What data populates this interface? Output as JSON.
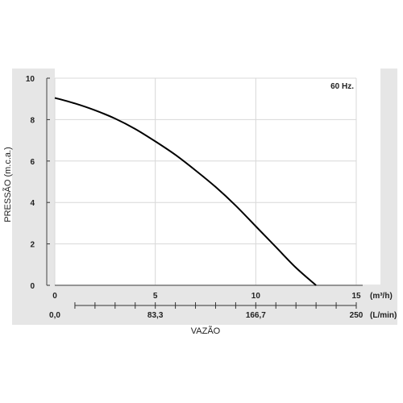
{
  "chart_data": {
    "type": "line",
    "annotation": "60 Hz.",
    "ylabel": "PRESSÃO (m.c.a.)",
    "xlabel": "VAZÃO",
    "ylim": [
      0,
      10
    ],
    "xlim": [
      0,
      15
    ],
    "y_ticks": [
      "0",
      "2",
      "4",
      "6",
      "8",
      "10"
    ],
    "x_ticks_m3h": [
      "0",
      "5",
      "10",
      "15"
    ],
    "x_unit_m3h": "(m³/h)",
    "x_ticks_lmin": [
      "0,0",
      "83,3",
      "166,7",
      "250"
    ],
    "x_unit_lmin": "(L/min)",
    "grid": true,
    "series": [
      {
        "color": "#000000",
        "x": [
          0,
          1,
          2,
          3,
          4,
          5,
          6,
          7,
          8,
          9,
          10,
          11,
          12,
          13.0
        ],
        "y": [
          9.05,
          8.78,
          8.45,
          8.05,
          7.55,
          6.95,
          6.3,
          5.55,
          4.75,
          3.85,
          2.85,
          1.85,
          0.85,
          0
        ]
      }
    ]
  }
}
